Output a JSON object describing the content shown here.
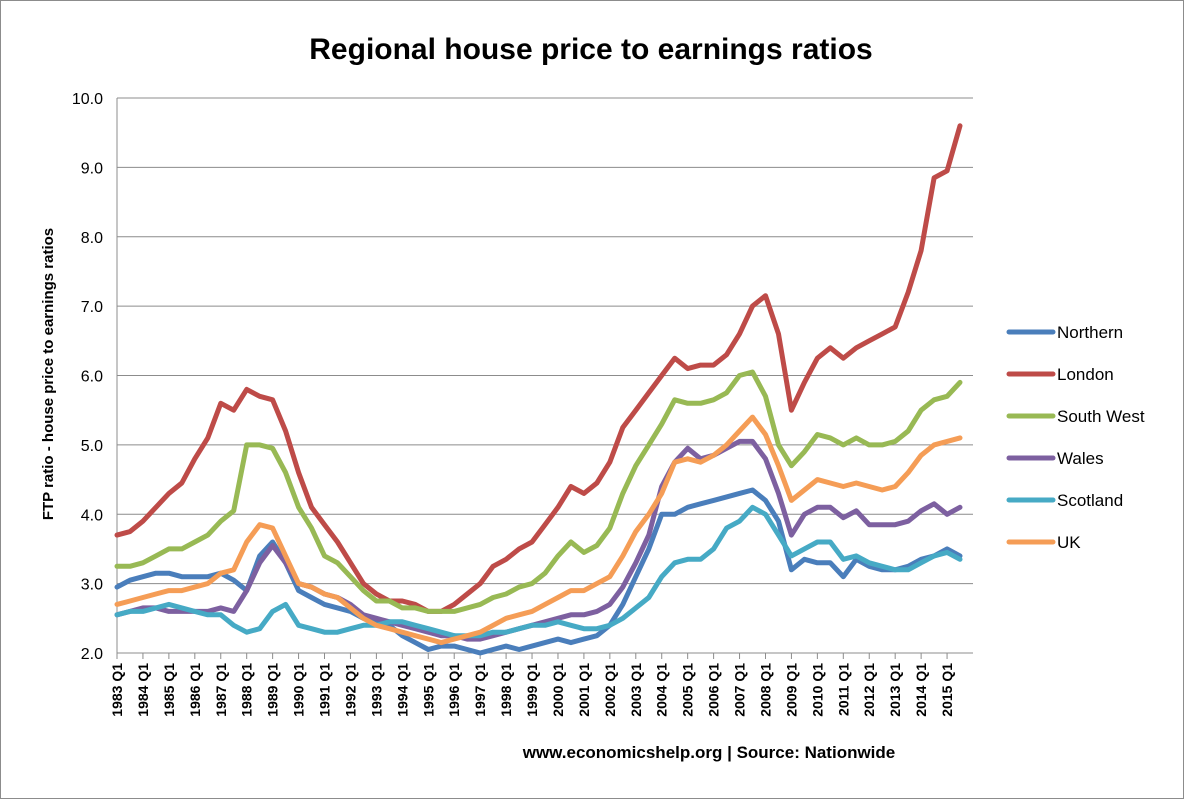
{
  "chart_data": {
    "type": "line",
    "title": "Regional house price to earnings ratios",
    "ylabel": "FTP ratio - house price to earnings ratios",
    "xlabel": "",
    "source": "www.economicshelp.org | Source: Nationwide",
    "ylim": [
      2.0,
      10.0
    ],
    "yticks": [
      "2.0",
      "3.0",
      "4.0",
      "5.0",
      "6.0",
      "7.0",
      "8.0",
      "9.0",
      "10.0"
    ],
    "grid": "horizontal",
    "legend_position": "right",
    "categories": [
      "1983 Q1",
      "1984 Q1",
      "1985 Q1",
      "1986 Q1",
      "1987 Q1",
      "1988 Q1",
      "1989 Q1",
      "1990 Q1",
      "1991 Q1",
      "1992 Q1",
      "1993 Q1",
      "1994 Q1",
      "1995 Q1",
      "1996 Q1",
      "1997 Q1",
      "1998 Q1",
      "1999 Q1",
      "2000 Q1",
      "2001 Q1",
      "2002 Q1",
      "2003 Q1",
      "2004 Q1",
      "2005 Q1",
      "2006 Q1",
      "2007 Q1",
      "2008 Q1",
      "2009 Q1",
      "2010 Q1",
      "2011 Q1",
      "2012 Q1",
      "2013 Q1",
      "2014 Q1",
      "2015 Q1"
    ],
    "x": [
      1983,
      1983.5,
      1984,
      1984.5,
      1985,
      1985.5,
      1986,
      1986.5,
      1987,
      1987.5,
      1988,
      1988.5,
      1989,
      1989.5,
      1990,
      1990.5,
      1991,
      1991.5,
      1992,
      1992.5,
      1993,
      1993.5,
      1994,
      1994.5,
      1995,
      1995.5,
      1996,
      1996.5,
      1997,
      1997.5,
      1998,
      1998.5,
      1999,
      1999.5,
      2000,
      2000.5,
      2001,
      2001.5,
      2002,
      2002.5,
      2003,
      2003.5,
      2004,
      2004.5,
      2005,
      2005.5,
      2006,
      2006.5,
      2007,
      2007.5,
      2008,
      2008.5,
      2009,
      2009.5,
      2010,
      2010.5,
      2011,
      2011.5,
      2012,
      2012.5,
      2013,
      2013.5,
      2014,
      2014.5,
      2015,
      2015.5
    ],
    "series": [
      {
        "name": "Northern",
        "color": "#4a7ebb",
        "values": [
          2.95,
          3.05,
          3.1,
          3.15,
          3.15,
          3.1,
          3.1,
          3.1,
          3.15,
          3.05,
          2.9,
          3.4,
          3.6,
          3.3,
          2.9,
          2.8,
          2.7,
          2.65,
          2.6,
          2.5,
          2.45,
          2.4,
          2.25,
          2.15,
          2.05,
          2.1,
          2.1,
          2.05,
          2.0,
          2.05,
          2.1,
          2.05,
          2.1,
          2.15,
          2.2,
          2.15,
          2.2,
          2.25,
          2.4,
          2.7,
          3.1,
          3.5,
          4.0,
          4.0,
          4.1,
          4.15,
          4.2,
          4.25,
          4.3,
          4.35,
          4.2,
          3.9,
          3.2,
          3.35,
          3.3,
          3.3,
          3.1,
          3.35,
          3.25,
          3.2,
          3.2,
          3.25,
          3.35,
          3.4,
          3.5,
          3.4
        ]
      },
      {
        "name": "London",
        "color": "#be4b48",
        "values": [
          3.7,
          3.75,
          3.9,
          4.1,
          4.3,
          4.45,
          4.8,
          5.1,
          5.6,
          5.5,
          5.8,
          5.7,
          5.65,
          5.2,
          4.6,
          4.1,
          3.85,
          3.6,
          3.3,
          3.0,
          2.85,
          2.75,
          2.75,
          2.7,
          2.6,
          2.6,
          2.7,
          2.85,
          3.0,
          3.25,
          3.35,
          3.5,
          3.6,
          3.85,
          4.1,
          4.4,
          4.3,
          4.45,
          4.75,
          5.25,
          5.5,
          5.75,
          6.0,
          6.25,
          6.1,
          6.15,
          6.15,
          6.3,
          6.6,
          7.0,
          7.15,
          6.6,
          5.5,
          5.9,
          6.25,
          6.4,
          6.25,
          6.4,
          6.5,
          6.6,
          6.7,
          7.2,
          7.8,
          8.85,
          8.95,
          9.6
        ]
      },
      {
        "name": "South West",
        "color": "#98b954",
        "values": [
          3.25,
          3.25,
          3.3,
          3.4,
          3.5,
          3.5,
          3.6,
          3.7,
          3.9,
          4.05,
          5.0,
          5.0,
          4.95,
          4.6,
          4.1,
          3.8,
          3.4,
          3.3,
          3.1,
          2.9,
          2.75,
          2.75,
          2.65,
          2.65,
          2.6,
          2.6,
          2.6,
          2.65,
          2.7,
          2.8,
          2.85,
          2.95,
          3.0,
          3.15,
          3.4,
          3.6,
          3.45,
          3.55,
          3.8,
          4.3,
          4.7,
          5.0,
          5.3,
          5.65,
          5.6,
          5.6,
          5.65,
          5.75,
          6.0,
          6.05,
          5.7,
          5.0,
          4.7,
          4.9,
          5.15,
          5.1,
          5.0,
          5.1,
          5.0,
          5.0,
          5.05,
          5.2,
          5.5,
          5.65,
          5.7,
          5.9
        ]
      },
      {
        "name": "Wales",
        "color": "#7d60a0",
        "values": [
          2.55,
          2.6,
          2.65,
          2.65,
          2.6,
          2.6,
          2.6,
          2.6,
          2.65,
          2.6,
          2.9,
          3.3,
          3.55,
          3.3,
          3.0,
          2.95,
          2.85,
          2.8,
          2.7,
          2.55,
          2.5,
          2.45,
          2.4,
          2.35,
          2.3,
          2.25,
          2.25,
          2.2,
          2.2,
          2.25,
          2.3,
          2.35,
          2.4,
          2.45,
          2.5,
          2.55,
          2.55,
          2.6,
          2.7,
          2.95,
          3.3,
          3.7,
          4.4,
          4.75,
          4.95,
          4.8,
          4.85,
          4.95,
          5.05,
          5.05,
          4.8,
          4.3,
          3.7,
          4.0,
          4.1,
          4.1,
          3.95,
          4.05,
          3.85,
          3.85,
          3.85,
          3.9,
          4.05,
          4.15,
          4.0,
          4.1
        ]
      },
      {
        "name": "Scotland",
        "color": "#46aac5",
        "values": [
          2.55,
          2.6,
          2.6,
          2.65,
          2.7,
          2.65,
          2.6,
          2.55,
          2.55,
          2.4,
          2.3,
          2.35,
          2.6,
          2.7,
          2.4,
          2.35,
          2.3,
          2.3,
          2.35,
          2.4,
          2.4,
          2.45,
          2.45,
          2.4,
          2.35,
          2.3,
          2.25,
          2.25,
          2.25,
          2.3,
          2.3,
          2.35,
          2.4,
          2.4,
          2.45,
          2.4,
          2.35,
          2.35,
          2.4,
          2.5,
          2.65,
          2.8,
          3.1,
          3.3,
          3.35,
          3.35,
          3.5,
          3.8,
          3.9,
          4.1,
          4.0,
          3.7,
          3.4,
          3.5,
          3.6,
          3.6,
          3.35,
          3.4,
          3.3,
          3.25,
          3.2,
          3.2,
          3.3,
          3.4,
          3.45,
          3.35
        ]
      },
      {
        "name": "UK",
        "color": "#f59d56",
        "values": [
          2.7,
          2.75,
          2.8,
          2.85,
          2.9,
          2.9,
          2.95,
          3.0,
          3.15,
          3.2,
          3.6,
          3.85,
          3.8,
          3.4,
          3.0,
          2.95,
          2.85,
          2.8,
          2.65,
          2.5,
          2.4,
          2.35,
          2.3,
          2.25,
          2.2,
          2.15,
          2.2,
          2.25,
          2.3,
          2.4,
          2.5,
          2.55,
          2.6,
          2.7,
          2.8,
          2.9,
          2.9,
          3.0,
          3.1,
          3.4,
          3.75,
          4.0,
          4.3,
          4.75,
          4.8,
          4.75,
          4.85,
          5.0,
          5.2,
          5.4,
          5.15,
          4.7,
          4.2,
          4.35,
          4.5,
          4.45,
          4.4,
          4.45,
          4.4,
          4.35,
          4.4,
          4.6,
          4.85,
          5.0,
          5.05,
          5.1
        ]
      }
    ]
  }
}
